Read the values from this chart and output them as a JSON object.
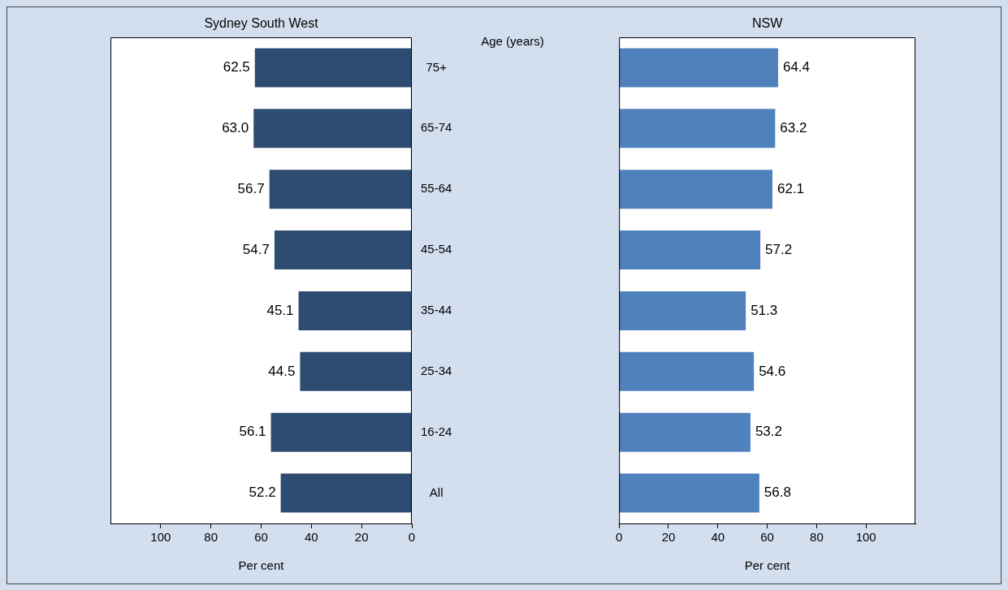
{
  "chart_data": [
    {
      "type": "bar",
      "orientation": "horizontal",
      "title": "Sydney South West",
      "xlabel": "Per cent",
      "ylabel": "Age (years)",
      "categories": [
        "75+",
        "65-74",
        "55-64",
        "45-54",
        "35-44",
        "25-34",
        "16-24",
        "All"
      ],
      "values": [
        62.5,
        63.0,
        56.7,
        54.7,
        45.1,
        44.5,
        56.1,
        52.2
      ],
      "value_labels": [
        "62.5",
        "63.0",
        "56.7",
        "54.7",
        "45.1",
        "44.5",
        "56.1",
        "52.2"
      ],
      "color": "#2e4b72",
      "xlim": [
        120,
        0
      ],
      "xticks": [
        100,
        80,
        60,
        40,
        20,
        0
      ],
      "grid": false
    },
    {
      "type": "bar",
      "orientation": "horizontal",
      "title": "NSW",
      "xlabel": "Per cent",
      "categories": [
        null,
        null,
        null,
        null,
        null,
        null,
        null,
        null
      ],
      "tick_labels": "x",
      "values": [
        64.4,
        63.2,
        62.1,
        57.2,
        51.3,
        54.6,
        53.2,
        56.8
      ],
      "color": "#4f81bd",
      "xlim": [
        0,
        120
      ],
      "xticks": [
        0,
        20,
        40,
        60,
        80,
        100
      ],
      "data_labels": true,
      "grid": false
    }
  ]
}
